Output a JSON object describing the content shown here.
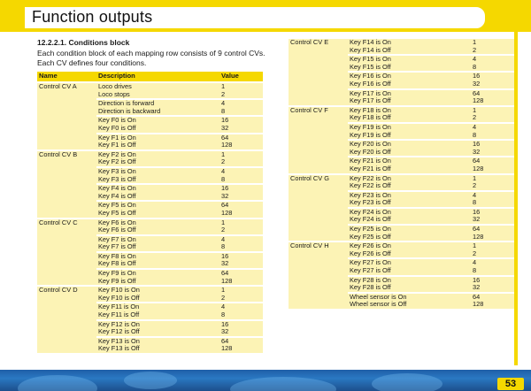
{
  "header": {
    "title": "Function outputs"
  },
  "page_number": "53",
  "section": {
    "number_title": "12.2.2.1. Conditions block",
    "intro": "Each condition block of each mapping row consists of 9 control CVs. Each CV defines four conditions."
  },
  "table": {
    "columns": [
      "Name",
      "Description",
      "Value"
    ],
    "left_groups": [
      {
        "name": "Control CV A",
        "pairs": [
          [
            [
              "Loco drives",
              "1"
            ],
            [
              "Loco stops",
              "2"
            ]
          ],
          [
            [
              "Direction is forward",
              "4"
            ],
            [
              "Direction is backward",
              "8"
            ]
          ],
          [
            [
              "Key F0 is On",
              "16"
            ],
            [
              "Key F0 is Off",
              "32"
            ]
          ],
          [
            [
              "Key F1 is On",
              "64"
            ],
            [
              "Key F1 is Off",
              "128"
            ]
          ]
        ]
      },
      {
        "name": "Control CV B",
        "pairs": [
          [
            [
              "Key F2 is On",
              "1"
            ],
            [
              "Key F2 is Off",
              "2"
            ]
          ],
          [
            [
              "Key F3 is On",
              "4"
            ],
            [
              "Key F3 is Off",
              "8"
            ]
          ],
          [
            [
              "Key F4 is On",
              "16"
            ],
            [
              "Key F4 is Off",
              "32"
            ]
          ],
          [
            [
              "Key F5 is On",
              "64"
            ],
            [
              "Key F5 is Off",
              "128"
            ]
          ]
        ]
      },
      {
        "name": "Control CV C",
        "pairs": [
          [
            [
              "Key F6 is On",
              "1"
            ],
            [
              "Key F6 is Off",
              "2"
            ]
          ],
          [
            [
              "Key F7 is On",
              "4"
            ],
            [
              "Key F7 is Off",
              "8"
            ]
          ],
          [
            [
              "Key F8 is On",
              "16"
            ],
            [
              "Key F8 is Off",
              "32"
            ]
          ],
          [
            [
              "Key F9 is On",
              "64"
            ],
            [
              "Key F9 is Off",
              "128"
            ]
          ]
        ]
      },
      {
        "name": "Control CV D",
        "pairs": [
          [
            [
              "Key F10 is On",
              "1"
            ],
            [
              "Key F10 is Off",
              "2"
            ]
          ],
          [
            [
              "Key F11 is On",
              "4"
            ],
            [
              "Key F11 is Off",
              "8"
            ]
          ],
          [
            [
              "Key F12 is On",
              "16"
            ],
            [
              "Key F12 is Off",
              "32"
            ]
          ],
          [
            [
              "Key F13 is On",
              "64"
            ],
            [
              "Key F13 is Off",
              "128"
            ]
          ]
        ]
      }
    ],
    "right_groups": [
      {
        "name": "Control CV E",
        "pairs": [
          [
            [
              "Key F14 is On",
              "1"
            ],
            [
              "Key F14 is Off",
              "2"
            ]
          ],
          [
            [
              "Key F15 is On",
              "4"
            ],
            [
              "Key F15 is Off",
              "8"
            ]
          ],
          [
            [
              "Key F16 is On",
              "16"
            ],
            [
              "Key F16 is Off",
              "32"
            ]
          ],
          [
            [
              "Key F17 is On",
              "64"
            ],
            [
              "Key F17 is Off",
              "128"
            ]
          ]
        ]
      },
      {
        "name": "Control CV F",
        "pairs": [
          [
            [
              "Key F18 is On",
              "1"
            ],
            [
              "Key F18 is Off",
              "2"
            ]
          ],
          [
            [
              "Key F19 is On",
              "4"
            ],
            [
              "Key F19 is Off",
              "8"
            ]
          ],
          [
            [
              "Key F20 is On",
              "16"
            ],
            [
              "Key F20 is Off",
              "32"
            ]
          ],
          [
            [
              "Key F21 is On",
              "64"
            ],
            [
              "Key F21 is Off",
              "128"
            ]
          ]
        ]
      },
      {
        "name": "Control CV G",
        "pairs": [
          [
            [
              "Key F22 is On",
              "1"
            ],
            [
              "Key F22 is Off",
              "2"
            ]
          ],
          [
            [
              "Key F23 is On",
              "4"
            ],
            [
              "Key F23 is Off",
              "8"
            ]
          ],
          [
            [
              "Key F24 is On",
              "16"
            ],
            [
              "Key F24 is Off",
              "32"
            ]
          ],
          [
            [
              "Key F25 is On",
              "64"
            ],
            [
              "Key F25 is Off",
              "128"
            ]
          ]
        ]
      },
      {
        "name": "Control CV H",
        "pairs": [
          [
            [
              "Key F26 is On",
              "1"
            ],
            [
              "Key F26 is Off",
              "2"
            ]
          ],
          [
            [
              "Key F27 is On",
              "4"
            ],
            [
              "Key F27 is Off",
              "8"
            ]
          ],
          [
            [
              "Key F28 is On",
              "16"
            ],
            [
              "Key F28 is Off",
              "32"
            ]
          ],
          [
            [
              "Wheel sensor is On",
              "64"
            ],
            [
              "Wheel sensor is Off",
              "128"
            ]
          ]
        ]
      }
    ]
  },
  "colors": {
    "accent_yellow": "#f5d800",
    "cell_fill": "#fcf3b5",
    "bottom_blue": "#2a78c2"
  }
}
